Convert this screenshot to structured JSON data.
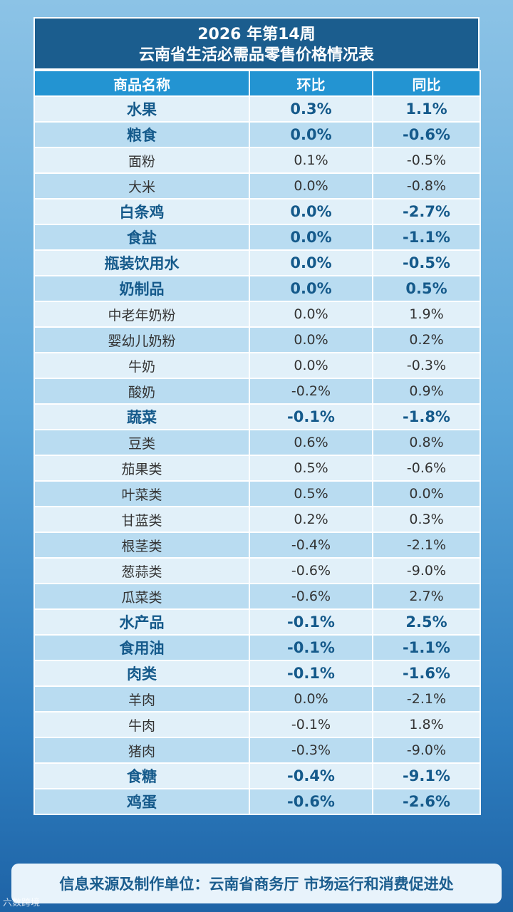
{
  "title": {
    "line1": "2026 年第14周",
    "line2": "云南省生活必需品零售价格情况表"
  },
  "headers": [
    "商品名称",
    "环比",
    "同比"
  ],
  "rows": [
    {
      "name": "水果",
      "mom": "0.3%",
      "yoy": "1.1%",
      "major": true
    },
    {
      "name": "粮食",
      "mom": "0.0%",
      "yoy": "-0.6%",
      "major": true
    },
    {
      "name": "面粉",
      "mom": "0.1%",
      "yoy": "-0.5%",
      "major": false
    },
    {
      "name": "大米",
      "mom": "0.0%",
      "yoy": "-0.8%",
      "major": false
    },
    {
      "name": "白条鸡",
      "mom": "0.0%",
      "yoy": "-2.7%",
      "major": true
    },
    {
      "name": "食盐",
      "mom": "0.0%",
      "yoy": "-1.1%",
      "major": true
    },
    {
      "name": "瓶装饮用水",
      "mom": "0.0%",
      "yoy": "-0.5%",
      "major": true
    },
    {
      "name": "奶制品",
      "mom": "0.0%",
      "yoy": "0.5%",
      "major": true
    },
    {
      "name": "中老年奶粉",
      "mom": "0.0%",
      "yoy": "1.9%",
      "major": false
    },
    {
      "name": "婴幼儿奶粉",
      "mom": "0.0%",
      "yoy": "0.2%",
      "major": false
    },
    {
      "name": "牛奶",
      "mom": "0.0%",
      "yoy": "-0.3%",
      "major": false
    },
    {
      "name": "酸奶",
      "mom": "-0.2%",
      "yoy": "0.9%",
      "major": false
    },
    {
      "name": "蔬菜",
      "mom": "-0.1%",
      "yoy": "-1.8%",
      "major": true
    },
    {
      "name": "豆类",
      "mom": "0.6%",
      "yoy": "0.8%",
      "major": false
    },
    {
      "name": "茄果类",
      "mom": "0.5%",
      "yoy": "-0.6%",
      "major": false
    },
    {
      "name": "叶菜类",
      "mom": "0.5%",
      "yoy": "0.0%",
      "major": false
    },
    {
      "name": "甘蓝类",
      "mom": "0.2%",
      "yoy": "0.3%",
      "major": false
    },
    {
      "name": "根茎类",
      "mom": "-0.4%",
      "yoy": "-2.1%",
      "major": false
    },
    {
      "name": "葱蒜类",
      "mom": "-0.6%",
      "yoy": "-9.0%",
      "major": false
    },
    {
      "name": "瓜菜类",
      "mom": "-0.6%",
      "yoy": "2.7%",
      "major": false
    },
    {
      "name": "水产品",
      "mom": "-0.1%",
      "yoy": "2.5%",
      "major": true
    },
    {
      "name": "食用油",
      "mom": "-0.1%",
      "yoy": "-1.1%",
      "major": true
    },
    {
      "name": "肉类",
      "mom": "-0.1%",
      "yoy": "-1.6%",
      "major": true
    },
    {
      "name": "羊肉",
      "mom": "0.0%",
      "yoy": "-2.1%",
      "major": false
    },
    {
      "name": "牛肉",
      "mom": "-0.1%",
      "yoy": "1.8%",
      "major": false
    },
    {
      "name": "猪肉",
      "mom": "-0.3%",
      "yoy": "-9.0%",
      "major": false
    },
    {
      "name": "食糖",
      "mom": "-0.4%",
      "yoy": "-9.1%",
      "major": true
    },
    {
      "name": "鸡蛋",
      "mom": "-0.6%",
      "yoy": "-2.6%",
      "major": true
    }
  ],
  "footer": "信息来源及制作单位：云南省商务厅 市场运行和消费促进处",
  "watermark": "六数跨境",
  "colors": {
    "title_bg": "#1b5d8e",
    "header_bg": "#2394d2",
    "row_light": "#e1f0f9",
    "row_dark": "#b9dcf1",
    "major_text": "#155a8b"
  }
}
